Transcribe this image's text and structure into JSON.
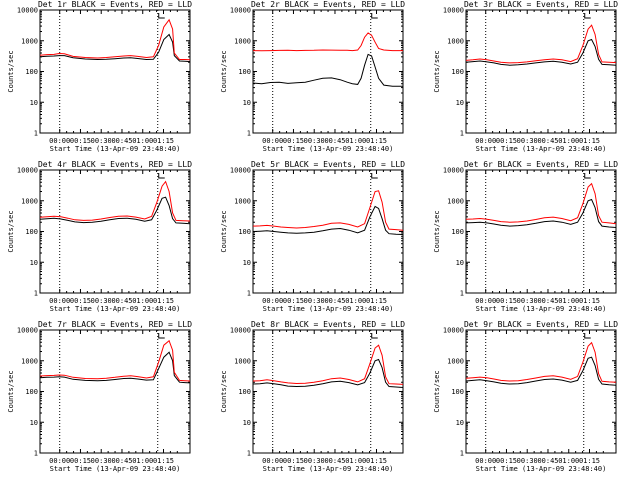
{
  "figure": {
    "ylabel": "Counts/sec",
    "xlabel": "Start Time (13-Apr-09 23:48:40)",
    "xticklabels": [
      "00:00",
      "00:15",
      "00:30",
      "00:45",
      "01:00",
      "01:15"
    ],
    "yticklabels": [
      "1",
      "10",
      "100",
      "1000",
      "10000"
    ],
    "colors": {
      "events": "#000000",
      "lld": "#ff0000",
      "background": "#ffffff"
    }
  },
  "chart_data": [
    {
      "type": "line",
      "title": "Det 1r BLACK = Events, RED = LLD",
      "yscale": "log",
      "ylim": [
        1,
        10000
      ],
      "x_minutes_since_start": [
        0,
        4,
        8,
        11,
        14,
        19,
        26,
        33,
        38,
        43,
        48,
        52,
        56,
        61,
        65,
        68,
        71,
        74,
        76,
        77,
        80,
        83,
        86
      ],
      "series": [
        {
          "name": "Events",
          "y": [
            300,
            315,
            320,
            330,
            330,
            280,
            255,
            245,
            250,
            260,
            275,
            280,
            265,
            245,
            250,
            420,
            1100,
            1600,
            900,
            330,
            220,
            215,
            210
          ]
        },
        {
          "name": "LLD",
          "y": [
            340,
            355,
            360,
            385,
            375,
            310,
            285,
            275,
            285,
            300,
            320,
            330,
            310,
            285,
            300,
            700,
            2800,
            4800,
            2400,
            400,
            245,
            245,
            240
          ]
        }
      ]
    },
    {
      "type": "line",
      "title": "Det 2r BLACK = Events, RED = LLD",
      "yscale": "log",
      "ylim": [
        1,
        10000
      ],
      "x_minutes_since_start": [
        0,
        5,
        10,
        15,
        20,
        25,
        30,
        35,
        40,
        45,
        50,
        54,
        57,
        60,
        62,
        64,
        66,
        68,
        70,
        72,
        75,
        80,
        86
      ],
      "series": [
        {
          "name": "Events",
          "y": [
            42,
            40,
            44,
            45,
            41,
            43,
            45,
            52,
            60,
            62,
            54,
            45,
            40,
            38,
            60,
            160,
            360,
            320,
            140,
            60,
            36,
            33,
            33
          ]
        },
        {
          "name": "LLD",
          "y": [
            480,
            470,
            480,
            485,
            490,
            480,
            485,
            490,
            500,
            495,
            490,
            490,
            480,
            500,
            700,
            1300,
            1800,
            1500,
            900,
            560,
            500,
            480,
            480
          ]
        }
      ]
    },
    {
      "type": "line",
      "title": "Det 3r BLACK = Events, RED = LLD",
      "yscale": "log",
      "ylim": [
        1,
        10000
      ],
      "x_minutes_since_start": [
        0,
        4,
        8,
        12,
        16,
        20,
        25,
        30,
        35,
        40,
        45,
        50,
        55,
        60,
        64,
        67,
        70,
        72,
        74,
        76,
        78,
        82,
        86
      ],
      "series": [
        {
          "name": "Events",
          "y": [
            200,
            210,
            220,
            205,
            190,
            170,
            160,
            165,
            175,
            190,
            205,
            215,
            200,
            175,
            200,
            400,
            1000,
            1100,
            650,
            250,
            170,
            165,
            160
          ]
        },
        {
          "name": "LLD",
          "y": [
            230,
            240,
            255,
            240,
            220,
            200,
            190,
            195,
            205,
            225,
            240,
            255,
            240,
            210,
            260,
            700,
            2400,
            3200,
            1600,
            360,
            205,
            200,
            195
          ]
        }
      ]
    },
    {
      "type": "line",
      "title": "Det 4r BLACK = Events, RED = LLD",
      "yscale": "log",
      "ylim": [
        1,
        10000
      ],
      "x_minutes_since_start": [
        0,
        4,
        8,
        12,
        16,
        20,
        25,
        30,
        35,
        40,
        45,
        50,
        55,
        60,
        64,
        67,
        70,
        72,
        74,
        76,
        78,
        82,
        86
      ],
      "series": [
        {
          "name": "Events",
          "y": [
            250,
            260,
            270,
            255,
            230,
            205,
            195,
            200,
            215,
            240,
            265,
            270,
            250,
            215,
            240,
            500,
            1200,
            1300,
            700,
            260,
            190,
            185,
            180
          ]
        },
        {
          "name": "LLD",
          "y": [
            290,
            300,
            315,
            300,
            270,
            240,
            230,
            235,
            255,
            285,
            315,
            320,
            295,
            255,
            310,
            900,
            3000,
            4200,
            2000,
            400,
            230,
            225,
            220
          ]
        }
      ]
    },
    {
      "type": "line",
      "title": "Det 5r BLACK = Events, RED = LLD",
      "yscale": "log",
      "ylim": [
        1,
        10000
      ],
      "x_minutes_since_start": [
        0,
        4,
        8,
        12,
        16,
        20,
        25,
        30,
        35,
        40,
        45,
        50,
        55,
        60,
        64,
        67,
        70,
        72,
        74,
        76,
        78,
        82,
        86
      ],
      "series": [
        {
          "name": "Events",
          "y": [
            100,
            102,
            105,
            100,
            95,
            90,
            88,
            90,
            95,
            105,
            120,
            125,
            110,
            90,
            110,
            300,
            650,
            560,
            260,
            110,
            85,
            82,
            80
          ]
        },
        {
          "name": "LLD",
          "y": [
            150,
            152,
            158,
            150,
            140,
            135,
            130,
            135,
            145,
            160,
            185,
            190,
            170,
            140,
            180,
            600,
            2000,
            2100,
            900,
            200,
            120,
            115,
            110
          ]
        }
      ]
    },
    {
      "type": "line",
      "title": "Det 6r BLACK = Events, RED = LLD",
      "yscale": "log",
      "ylim": [
        1,
        10000
      ],
      "x_minutes_since_start": [
        0,
        4,
        8,
        12,
        16,
        20,
        25,
        30,
        35,
        40,
        45,
        50,
        55,
        60,
        64,
        67,
        70,
        72,
        74,
        76,
        78,
        82,
        86
      ],
      "series": [
        {
          "name": "Events",
          "y": [
            190,
            195,
            200,
            190,
            175,
            160,
            150,
            155,
            165,
            185,
            210,
            220,
            200,
            170,
            200,
            400,
            1000,
            1100,
            600,
            210,
            150,
            140,
            135
          ]
        },
        {
          "name": "LLD",
          "y": [
            250,
            255,
            265,
            250,
            230,
            210,
            200,
            205,
            220,
            245,
            280,
            295,
            265,
            225,
            280,
            800,
            2800,
            3600,
            1700,
            330,
            200,
            190,
            180
          ]
        }
      ]
    },
    {
      "type": "line",
      "title": "Det 7r BLACK = Events, RED = LLD",
      "yscale": "log",
      "ylim": [
        1,
        10000
      ],
      "x_minutes_since_start": [
        0,
        4,
        8,
        11,
        14,
        19,
        26,
        33,
        38,
        43,
        48,
        52,
        56,
        61,
        65,
        68,
        71,
        74,
        76,
        77,
        80,
        83,
        86
      ],
      "series": [
        {
          "name": "Events",
          "y": [
            280,
            290,
            295,
            300,
            295,
            250,
            230,
            225,
            230,
            245,
            265,
            270,
            255,
            235,
            240,
            550,
            1300,
            1900,
            1000,
            330,
            200,
            195,
            190
          ]
        },
        {
          "name": "LLD",
          "y": [
            320,
            330,
            335,
            345,
            340,
            290,
            265,
            260,
            270,
            290,
            315,
            325,
            305,
            275,
            300,
            900,
            3200,
            4500,
            2200,
            420,
            230,
            225,
            220
          ]
        }
      ]
    },
    {
      "type": "line",
      "title": "Det 8r BLACK = Events, RED = LLD",
      "yscale": "log",
      "ylim": [
        1,
        10000
      ],
      "x_minutes_since_start": [
        0,
        4,
        8,
        12,
        16,
        20,
        25,
        30,
        35,
        40,
        45,
        50,
        55,
        60,
        64,
        67,
        70,
        72,
        74,
        76,
        78,
        82,
        86
      ],
      "series": [
        {
          "name": "Events",
          "y": [
            175,
            180,
            190,
            180,
            165,
            150,
            145,
            148,
            160,
            180,
            205,
            215,
            195,
            165,
            195,
            400,
            1000,
            1100,
            600,
            200,
            145,
            140,
            135
          ]
        },
        {
          "name": "LLD",
          "y": [
            220,
            225,
            240,
            225,
            205,
            190,
            182,
            186,
            200,
            225,
            260,
            275,
            245,
            205,
            260,
            800,
            2600,
            3200,
            1500,
            300,
            180,
            175,
            170
          ]
        }
      ]
    },
    {
      "type": "line",
      "title": "Det 9r BLACK = Events, RED = LLD",
      "yscale": "log",
      "ylim": [
        1,
        10000
      ],
      "x_minutes_since_start": [
        0,
        4,
        8,
        12,
        16,
        20,
        25,
        30,
        35,
        40,
        45,
        50,
        55,
        60,
        64,
        67,
        70,
        72,
        74,
        76,
        78,
        82,
        86
      ],
      "series": [
        {
          "name": "Events",
          "y": [
            220,
            230,
            240,
            225,
            205,
            185,
            175,
            180,
            195,
            220,
            245,
            255,
            235,
            200,
            230,
            480,
            1200,
            1300,
            700,
            250,
            175,
            165,
            160
          ]
        },
        {
          "name": "LLD",
          "y": [
            270,
            280,
            295,
            280,
            255,
            230,
            220,
            225,
            245,
            275,
            310,
            325,
            295,
            250,
            310,
            900,
            3000,
            3900,
            1900,
            380,
            215,
            205,
            200
          ]
        }
      ]
    }
  ]
}
